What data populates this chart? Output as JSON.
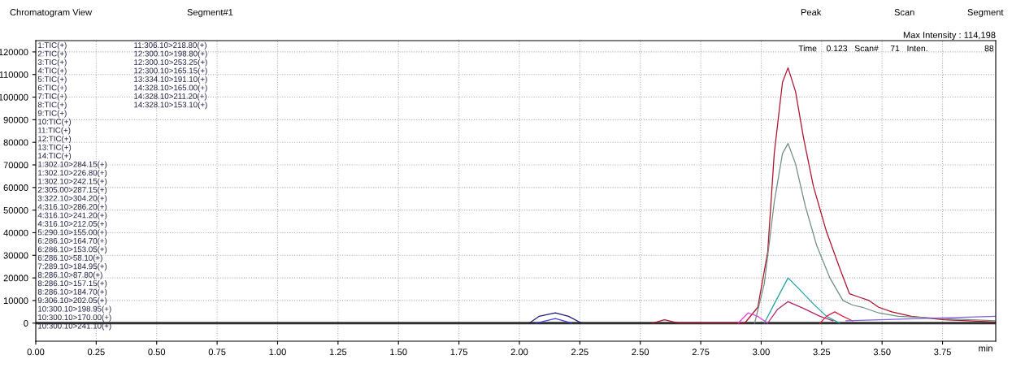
{
  "chart_data": {
    "type": "line",
    "title": "Chromatogram View",
    "subtitle": "Segment#1",
    "xlabel": "min",
    "xlim": [
      0,
      3.97
    ],
    "ylim": [
      -8000,
      125000
    ],
    "xticks": [
      {
        "value": 0,
        "label": "0.00"
      },
      {
        "value": 0.25,
        "label": "0.25"
      },
      {
        "value": 0.5,
        "label": "0.50"
      },
      {
        "value": 0.75,
        "label": "0.75"
      },
      {
        "value": 1,
        "label": "1.00"
      },
      {
        "value": 1.25,
        "label": "1.25"
      },
      {
        "value": 1.5,
        "label": "1.50"
      },
      {
        "value": 1.75,
        "label": "1.75"
      },
      {
        "value": 2,
        "label": "2.00"
      },
      {
        "value": 2.25,
        "label": "2.25"
      },
      {
        "value": 2.5,
        "label": "2.50"
      },
      {
        "value": 2.75,
        "label": "2.75"
      },
      {
        "value": 3,
        "label": "3.00"
      },
      {
        "value": 3.25,
        "label": "3.25"
      },
      {
        "value": 3.5,
        "label": "3.50"
      },
      {
        "value": 3.75,
        "label": "3.75"
      }
    ],
    "yticks": [
      0,
      10000,
      20000,
      30000,
      40000,
      50000,
      60000,
      70000,
      80000,
      90000,
      100000,
      110000,
      120000
    ],
    "grid": true,
    "line_style": "solid",
    "series": [
      {
        "color": "#303030",
        "x": [
          0,
          3.97
        ],
        "values": [
          0,
          0
        ]
      },
      {
        "color": "#b0102a",
        "x": [
          2.55,
          2.6,
          2.66,
          2.932,
          2.986,
          3.027,
          3.054,
          3.088,
          3.111,
          3.142,
          3.175,
          3.216,
          3.27,
          3.324,
          3.365,
          3.405,
          3.446,
          3.486,
          3.54,
          3.621,
          3.756,
          3.97
        ],
        "values": [
          0,
          1500,
          0,
          0,
          7000,
          31500,
          75000,
          106500,
          113000,
          102500,
          82000,
          60500,
          40500,
          24500,
          13000,
          11500,
          10000,
          7000,
          5000,
          3000,
          1500,
          500
        ]
      },
      {
        "color": "#6f8f7f",
        "x": [
          2.973,
          3.013,
          3.054,
          3.088,
          3.111,
          3.142,
          3.182,
          3.229,
          3.284,
          3.338,
          3.378,
          3.419,
          3.486,
          3.567,
          3.756,
          3.97
        ],
        "values": [
          0,
          17500,
          53500,
          75000,
          79500,
          70500,
          52000,
          34500,
          20000,
          10000,
          8000,
          7000,
          4500,
          3000,
          2000,
          1000
        ]
      },
      {
        "color": "#20a0a0",
        "x": [
          3.013,
          3.054,
          3.111,
          3.162,
          3.216,
          3.27,
          3.324
        ],
        "values": [
          0,
          8500,
          20000,
          14500,
          8500,
          3000,
          0
        ]
      },
      {
        "color": "#b0206a",
        "x": [
          3.027,
          3.067,
          3.111,
          3.175,
          3.243,
          3.297
        ],
        "values": [
          0,
          6000,
          9500,
          6500,
          3000,
          1000
        ]
      },
      {
        "color": "#e02040",
        "x": [
          3.243,
          3.27,
          3.304,
          3.338,
          3.378
        ],
        "values": [
          0,
          3000,
          5000,
          3000,
          1000
        ]
      },
      {
        "color": "#e040e0",
        "x": [
          2.905,
          2.946,
          2.986,
          3.027
        ],
        "values": [
          0,
          4500,
          3000,
          0
        ]
      },
      {
        "color": "#1a1a80",
        "x": [
          2.041,
          2.081,
          2.149,
          2.203,
          2.257
        ],
        "values": [
          0,
          3000,
          4500,
          3000,
          0
        ]
      },
      {
        "color": "#4040e0",
        "x": [
          2.068,
          2.149,
          2.216
        ],
        "values": [
          0,
          2000,
          0
        ]
      },
      {
        "color": "#8060e0",
        "x": [
          3.351,
          3.97
        ],
        "values": [
          1000,
          3000
        ]
      }
    ],
    "annotations": [
      "Peak",
      "Scan",
      "Segment",
      "Max Intensity : 114,198",
      "Time    0.123   Scan#     71   Inten.                        88",
      "1:TIC(+)",
      "2:TIC(+)",
      "3:TIC(+)",
      "4:TIC(+)",
      "5:TIC(+)",
      "6:TIC(+)",
      "7:TIC(+)",
      "8:TIC(+)",
      "9:TIC(+)",
      "10:TIC(+)",
      "11:TIC(+)",
      "12:TIC(+)",
      "13:TIC(+)",
      "14:TIC(+)",
      "1:302.10>284.15(+)",
      "1:302.10>226.80(+)",
      "1:302.10>242.15(+)",
      "2:305.00>287.15(+)",
      "3:322.10>304.20(+)",
      "4:316.10>286.20(+)",
      "4:316.10>241.20(+)",
      "4:316.10>212.05(+)",
      "5:290.10>155.00(+)",
      "6:286.10>164.70(+)",
      "6:286.10>153.05(+)",
      "6:286.10>58.10(+)",
      "7:289.10>184.95(+)",
      "8:286.10>87.80(+)",
      "8:286.10>157.15(+)",
      "8:286.10>184.70(+)",
      "9:306.10>202.05(+)",
      "10:300.10>198.95(+)",
      "10:300.10>170.00(+)",
      "10:300.10>241.10(+)",
      "11:306.10>218.80(+)",
      "12:300.10>198.80(+)",
      "12:300.10>253.25(+)",
      "12:300.10>165.15(+)",
      "13:334.10>191.10(+)",
      "14:328.10>165.00(+)",
      "14:328.10>211.20(+)",
      "14:328.10>153.10(+)"
    ]
  }
}
